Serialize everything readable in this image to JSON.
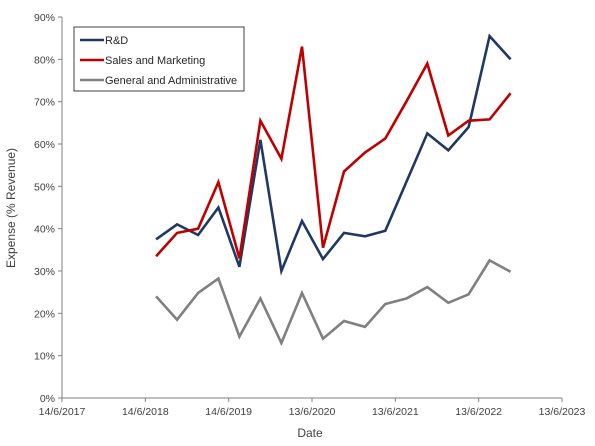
{
  "chart_data": {
    "type": "line",
    "xlabel": "Date",
    "ylabel": "Expense (% Revenue)",
    "x_ticks": [
      "14/6/2017",
      "14/6/2018",
      "14/6/2019",
      "13/6/2020",
      "13/6/2021",
      "13/6/2022",
      "13/6/2023"
    ],
    "y_ticks": [
      "0%",
      "10%",
      "20%",
      "30%",
      "40%",
      "50%",
      "60%",
      "70%",
      "80%",
      "90%"
    ],
    "xlim": [
      "2017-06-14",
      "2023-06-13"
    ],
    "ylim": [
      0,
      90
    ],
    "grid": false,
    "legend_position": "top-left",
    "x": [
      "2018-07-31",
      "2018-10-31",
      "2019-01-31",
      "2019-04-30",
      "2019-07-31",
      "2019-10-31",
      "2020-01-31",
      "2020-04-30",
      "2020-07-31",
      "2020-10-31",
      "2021-01-31",
      "2021-04-30",
      "2021-07-31",
      "2021-10-31",
      "2022-01-31",
      "2022-04-30",
      "2022-07-31",
      "2022-10-31"
    ],
    "series": [
      {
        "name": "R&D",
        "color": "#1f3864",
        "values": [
          37.5,
          41.0,
          38.5,
          45.0,
          31.0,
          61.0,
          30.0,
          41.8,
          32.8,
          39.0,
          38.2,
          39.5,
          51.0,
          62.5,
          58.5,
          64.0,
          85.5,
          80.0
        ]
      },
      {
        "name": "Sales and Marketing",
        "color": "#c00000",
        "values": [
          33.5,
          39.0,
          40.0,
          51.0,
          33.0,
          65.5,
          56.5,
          83.0,
          35.5,
          53.5,
          58.0,
          61.3,
          70.0,
          79.0,
          62.0,
          65.5,
          65.8,
          72.0
        ]
      },
      {
        "name": "General and Administrative",
        "color": "#808080",
        "values": [
          24.0,
          18.5,
          24.8,
          28.2,
          14.5,
          23.5,
          13.0,
          24.8,
          14.0,
          18.2,
          16.8,
          22.2,
          23.5,
          26.2,
          22.5,
          24.5,
          32.5,
          29.8
        ]
      }
    ]
  }
}
